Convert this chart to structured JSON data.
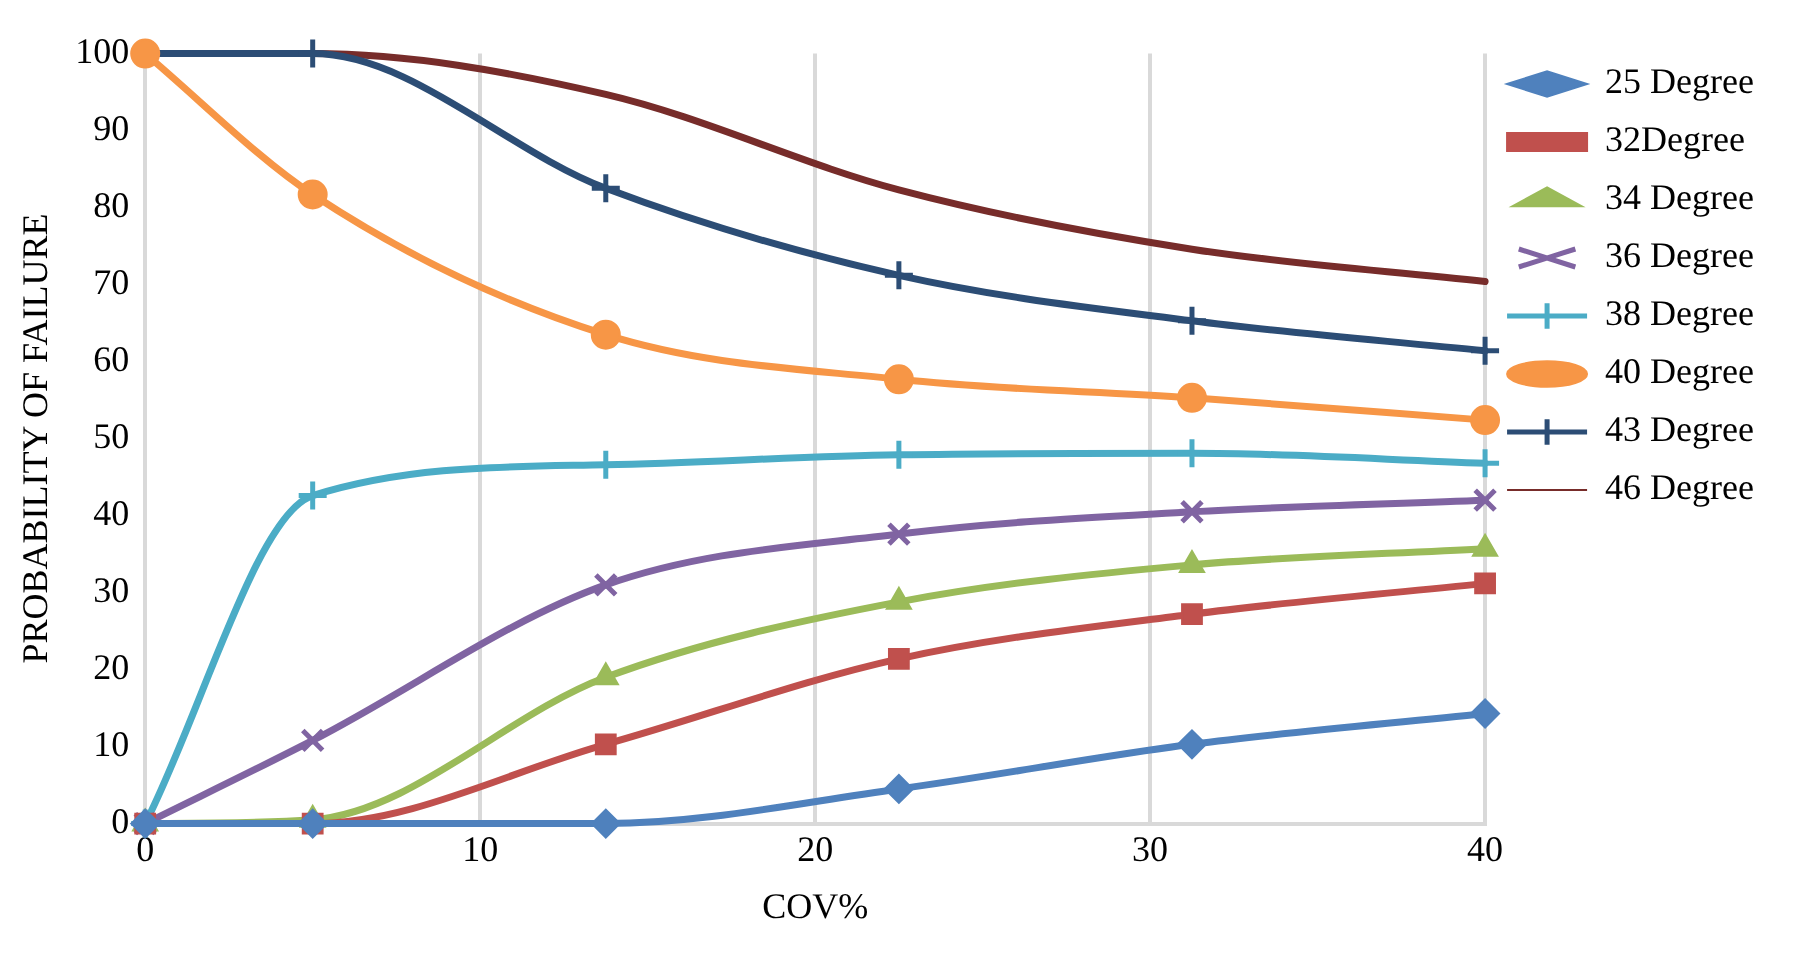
{
  "chart_data": {
    "type": "line",
    "xlabel": "COV%",
    "ylabel": "PROBABILITY OF FAILURE",
    "x": [
      0,
      5,
      13.75,
      22.5,
      31.25,
      40
    ],
    "xlim": [
      0,
      40
    ],
    "xticks": [
      0,
      10,
      20,
      30,
      40
    ],
    "ylim": [
      0,
      100
    ],
    "yticks": [
      0,
      10,
      20,
      30,
      40,
      50,
      60,
      70,
      80,
      90,
      100
    ],
    "grid": "x",
    "legend": "right",
    "line_style": "solid",
    "series": [
      {
        "name": "25 Degree",
        "color": "#4f81bd",
        "marker": "diamond",
        "values": [
          0,
          0,
          0,
          4.5,
          10.3,
          14.3
        ]
      },
      {
        "name": "32Degree",
        "color": "#c0504d",
        "marker": "square",
        "values": [
          0,
          0,
          10.3,
          21.4,
          27.2,
          31.2
        ]
      },
      {
        "name": "34 Degree",
        "color": "#9bbb59",
        "marker": "triangle",
        "values": [
          0,
          0.5,
          19,
          28.8,
          33.6,
          35.7
        ]
      },
      {
        "name": "36 Degree",
        "color": "#8064a2",
        "marker": "x",
        "values": [
          0,
          10.8,
          31,
          37.6,
          40.5,
          42
        ]
      },
      {
        "name": "38 Degree",
        "color": "#4bacc6",
        "marker": "cross",
        "values": [
          0,
          42.6,
          46.6,
          47.9,
          48.1,
          46.8
        ]
      },
      {
        "name": "40 Degree",
        "color": "#f79646",
        "marker": "circle",
        "values": [
          100,
          81.7,
          63.5,
          57.7,
          55.3,
          52.4
        ]
      },
      {
        "name": "43 Degree",
        "color": "#2c4d75",
        "marker": "cross",
        "values": [
          100,
          100,
          82.5,
          71.2,
          65.3,
          61.4
        ]
      },
      {
        "name": "46 Degree",
        "color": "#772c2a",
        "marker": "none",
        "values": [
          100,
          100,
          94.7,
          82.3,
          74.6,
          70.4
        ]
      }
    ]
  }
}
